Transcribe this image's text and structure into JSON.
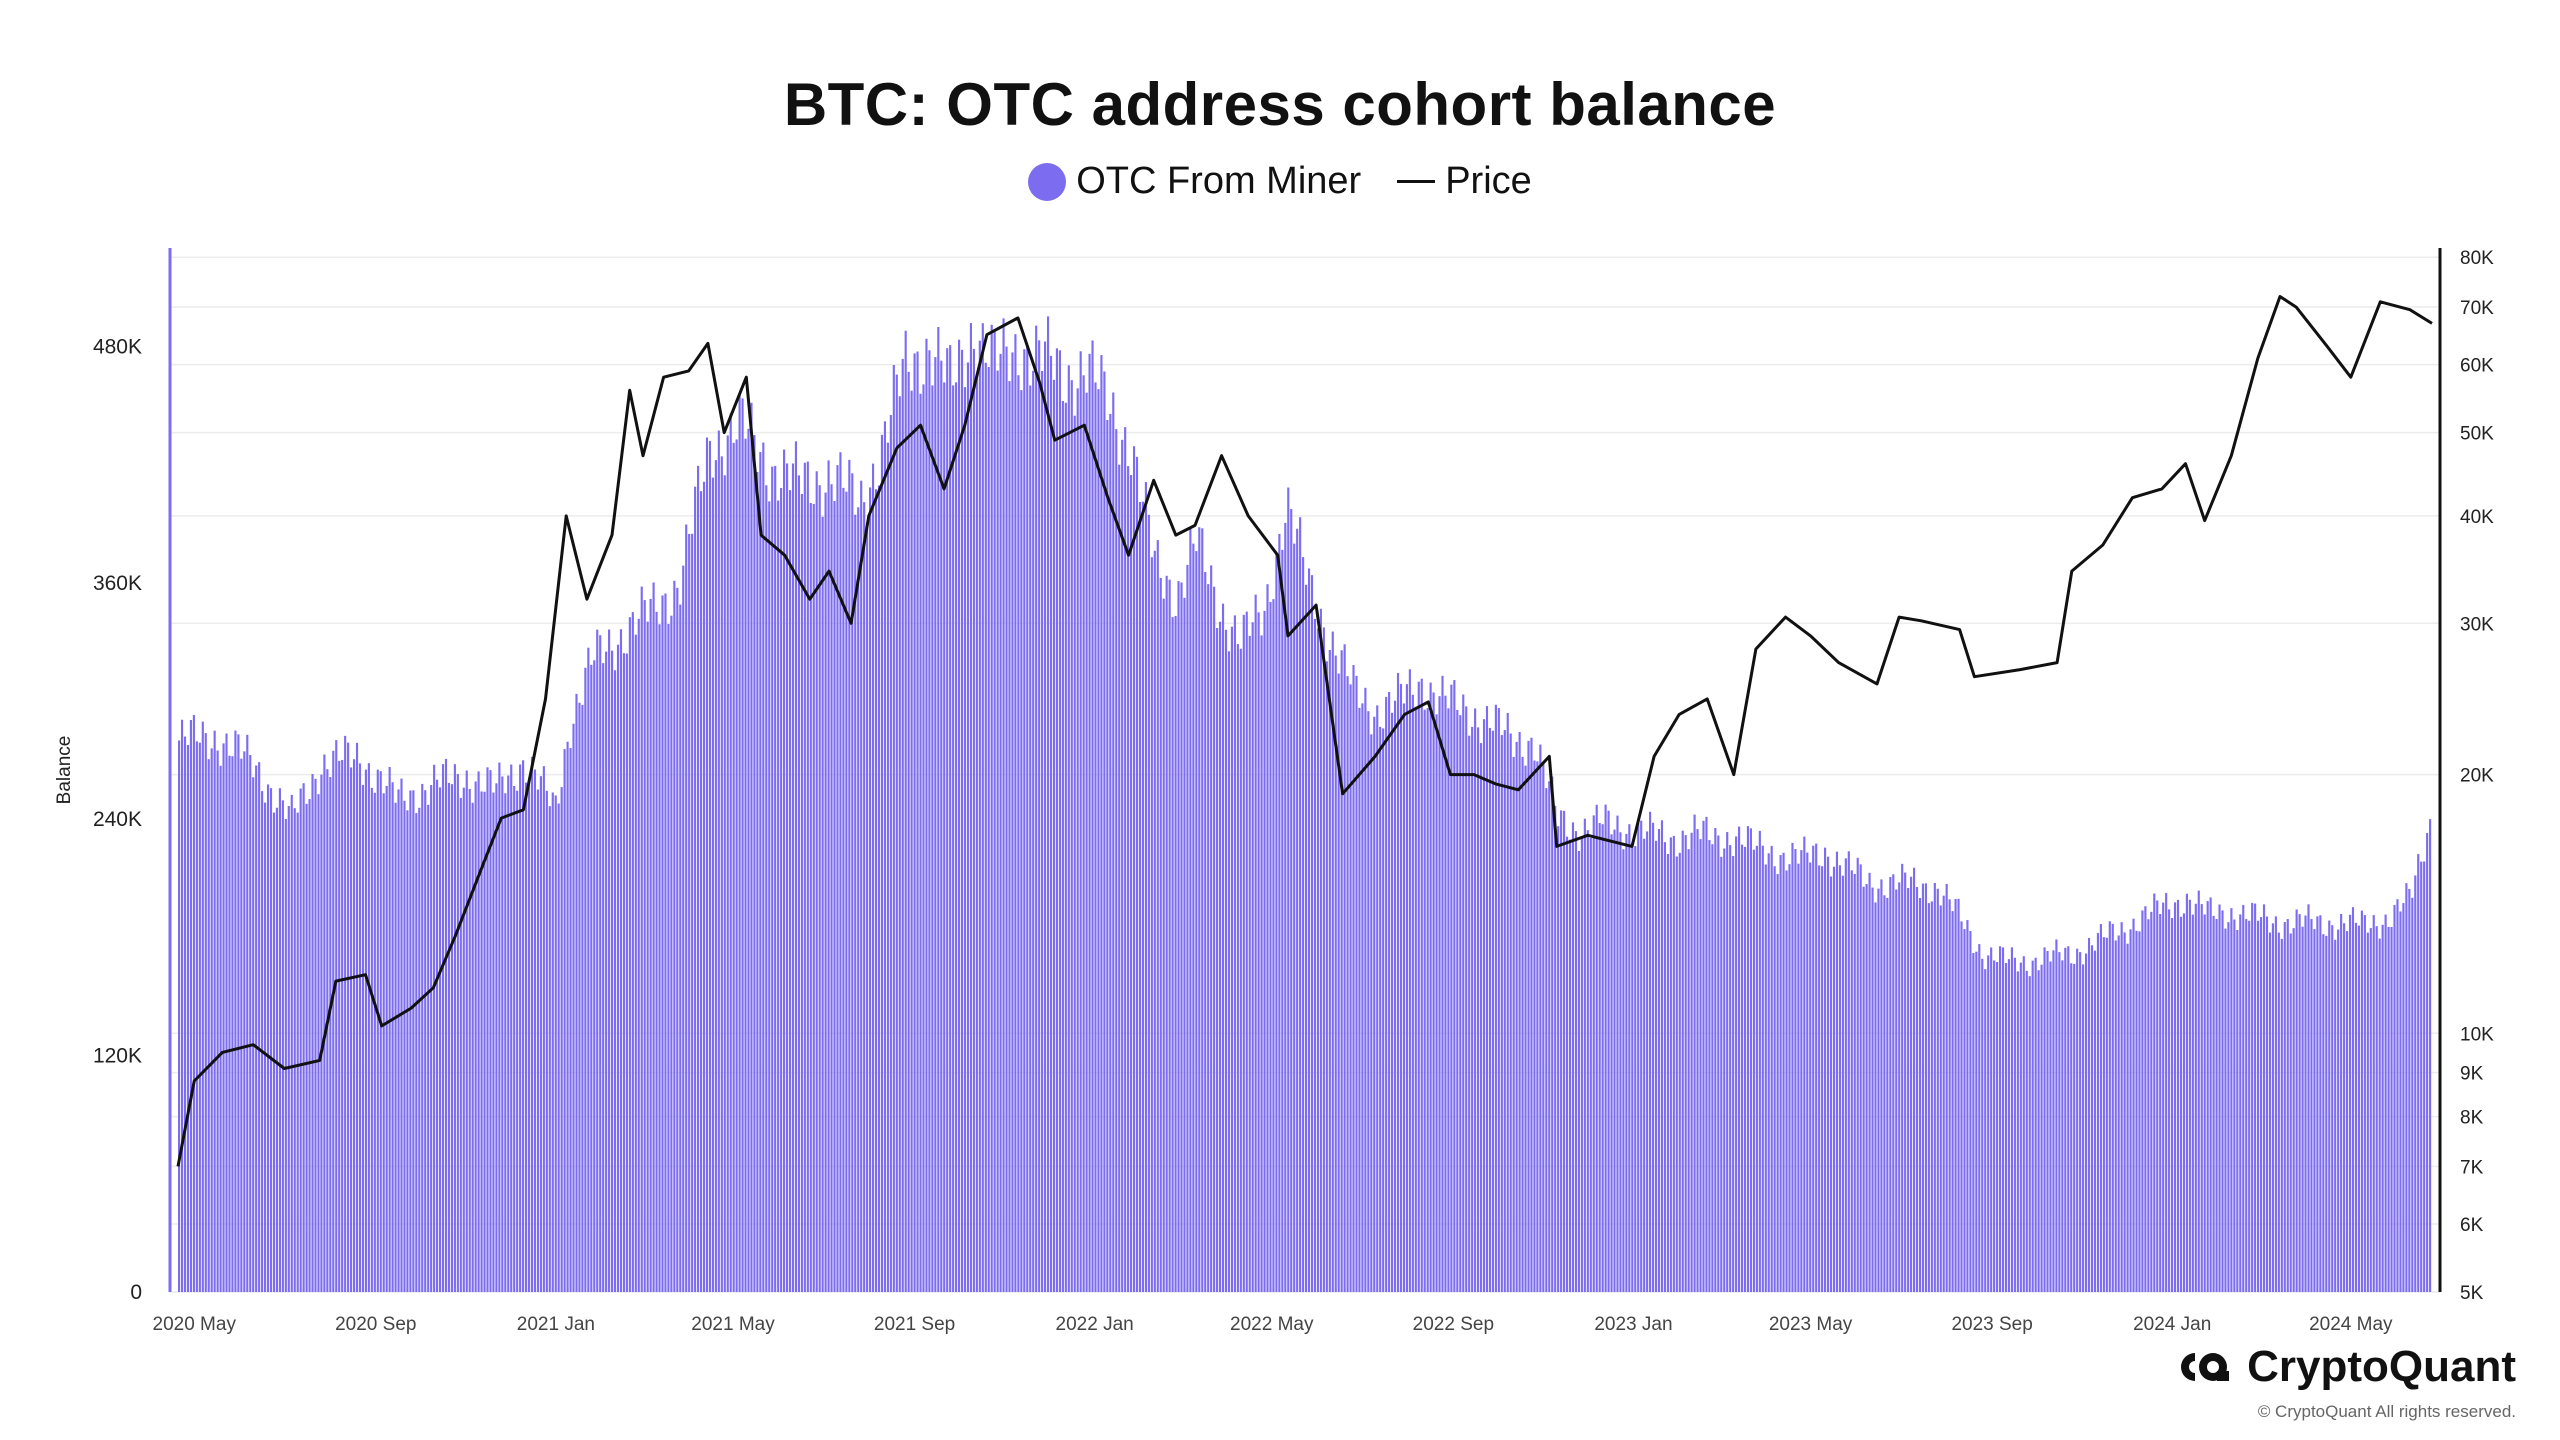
{
  "chart_data": {
    "type": "bar+line",
    "title": "BTC: OTC address cohort balance",
    "ylabel": "Balance",
    "y_left_ticks": [
      "0",
      "120K",
      "240K",
      "360K",
      "480K"
    ],
    "ylim_left": [
      0,
      530000
    ],
    "y_right_ticks": [
      "5K",
      "6K",
      "7K",
      "8K",
      "9K",
      "10K",
      "20K",
      "30K",
      "40K",
      "50K",
      "60K",
      "70K",
      "80K"
    ],
    "ylim_right": [
      5000,
      82000
    ],
    "y_right_scale": "log",
    "x_ticks": [
      "2020 May",
      "2020 Sep",
      "2021 Jan",
      "2021 May",
      "2021 Sep",
      "2022 Jan",
      "2022 May",
      "2022 Sep",
      "2023 Jan",
      "2023 May",
      "2023 Sep",
      "2024 Jan",
      "2024 May"
    ],
    "x_range": [
      "2020-04-20",
      "2024-06-25"
    ],
    "grid": true,
    "legend_position": "top-center",
    "series": [
      {
        "name": "OTC From Miner",
        "type": "bar",
        "color": "#7b6cf0",
        "points": [
          [
            "2020-04-20",
            280000
          ],
          [
            "2020-05-15",
            282000
          ],
          [
            "2020-06-10",
            268000
          ],
          [
            "2020-07-05",
            240000
          ],
          [
            "2020-07-25",
            268000
          ],
          [
            "2020-08-20",
            272000
          ],
          [
            "2020-09-15",
            250000
          ],
          [
            "2020-10-10",
            258000
          ],
          [
            "2020-11-01",
            262000
          ],
          [
            "2020-11-20",
            255000
          ],
          [
            "2020-12-10",
            270000
          ],
          [
            "2020-12-31",
            245000
          ],
          [
            "2021-01-10",
            290000
          ],
          [
            "2021-01-25",
            320000
          ],
          [
            "2021-02-15",
            335000
          ],
          [
            "2021-03-05",
            345000
          ],
          [
            "2021-03-25",
            360000
          ],
          [
            "2021-04-15",
            430000
          ],
          [
            "2021-05-05",
            440000
          ],
          [
            "2021-05-25",
            420000
          ],
          [
            "2021-06-15",
            410000
          ],
          [
            "2021-07-05",
            415000
          ],
          [
            "2021-07-25",
            400000
          ],
          [
            "2021-08-10",
            430000
          ],
          [
            "2021-08-25",
            470000
          ],
          [
            "2021-09-10",
            480000
          ],
          [
            "2021-09-25",
            460000
          ],
          [
            "2021-10-10",
            490000
          ],
          [
            "2021-10-25",
            470000
          ],
          [
            "2021-11-10",
            480000
          ],
          [
            "2021-11-25",
            475000
          ],
          [
            "2021-12-10",
            465000
          ],
          [
            "2021-12-25",
            470000
          ],
          [
            "2022-01-10",
            450000
          ],
          [
            "2022-01-25",
            430000
          ],
          [
            "2022-02-10",
            370000
          ],
          [
            "2022-02-25",
            355000
          ],
          [
            "2022-03-10",
            380000
          ],
          [
            "2022-03-25",
            350000
          ],
          [
            "2022-04-10",
            330000
          ],
          [
            "2022-04-25",
            345000
          ],
          [
            "2022-05-10",
            400000
          ],
          [
            "2022-05-25",
            360000
          ],
          [
            "2022-06-10",
            330000
          ],
          [
            "2022-06-25",
            305000
          ],
          [
            "2022-07-10",
            295000
          ],
          [
            "2022-07-25",
            300000
          ],
          [
            "2022-08-10",
            310000
          ],
          [
            "2022-08-25",
            300000
          ],
          [
            "2022-09-10",
            295000
          ],
          [
            "2022-09-25",
            290000
          ],
          [
            "2022-10-10",
            280000
          ],
          [
            "2022-10-25",
            280000
          ],
          [
            "2022-11-10",
            240000
          ],
          [
            "2022-11-25",
            235000
          ],
          [
            "2022-12-10",
            238000
          ],
          [
            "2022-12-25",
            236000
          ],
          [
            "2023-01-10",
            233000
          ],
          [
            "2023-01-25",
            230000
          ],
          [
            "2023-02-10",
            233000
          ],
          [
            "2023-02-25",
            230000
          ],
          [
            "2023-03-10",
            232000
          ],
          [
            "2023-03-25",
            225000
          ],
          [
            "2023-04-10",
            222000
          ],
          [
            "2023-04-25",
            220000
          ],
          [
            "2023-05-10",
            224000
          ],
          [
            "2023-05-25",
            215000
          ],
          [
            "2023-06-10",
            208000
          ],
          [
            "2023-06-25",
            207000
          ],
          [
            "2023-07-10",
            208000
          ],
          [
            "2023-07-25",
            205000
          ],
          [
            "2023-08-10",
            190000
          ],
          [
            "2023-08-25",
            172000
          ],
          [
            "2023-09-10",
            168000
          ],
          [
            "2023-09-25",
            168000
          ],
          [
            "2023-10-10",
            170000
          ],
          [
            "2023-10-25",
            172000
          ],
          [
            "2023-11-10",
            178000
          ],
          [
            "2023-11-25",
            183000
          ],
          [
            "2023-12-10",
            190000
          ],
          [
            "2023-12-25",
            195000
          ],
          [
            "2024-01-10",
            200000
          ],
          [
            "2024-01-25",
            192000
          ],
          [
            "2024-02-10",
            193000
          ],
          [
            "2024-02-25",
            190000
          ],
          [
            "2024-03-10",
            188000
          ],
          [
            "2024-03-25",
            188000
          ],
          [
            "2024-04-10",
            187000
          ],
          [
            "2024-04-25",
            188000
          ],
          [
            "2024-05-10",
            186000
          ],
          [
            "2024-05-25",
            190000
          ],
          [
            "2024-06-10",
            200000
          ],
          [
            "2024-06-25",
            245000
          ]
        ]
      },
      {
        "name": "Price",
        "type": "line",
        "color": "#111111",
        "points": [
          [
            "2020-04-20",
            7000
          ],
          [
            "2020-05-01",
            8800
          ],
          [
            "2020-05-20",
            9500
          ],
          [
            "2020-06-10",
            9700
          ],
          [
            "2020-07-01",
            9100
          ],
          [
            "2020-07-25",
            9300
          ],
          [
            "2020-08-05",
            11500
          ],
          [
            "2020-08-25",
            11700
          ],
          [
            "2020-09-05",
            10200
          ],
          [
            "2020-09-25",
            10700
          ],
          [
            "2020-10-10",
            11300
          ],
          [
            "2020-10-25",
            13000
          ],
          [
            "2020-11-10",
            15300
          ],
          [
            "2020-11-25",
            17800
          ],
          [
            "2020-12-10",
            18200
          ],
          [
            "2020-12-25",
            24500
          ],
          [
            "2021-01-08",
            40000
          ],
          [
            "2021-01-22",
            32000
          ],
          [
            "2021-02-08",
            38000
          ],
          [
            "2021-02-20",
            56000
          ],
          [
            "2021-03-01",
            47000
          ],
          [
            "2021-03-15",
            58000
          ],
          [
            "2021-04-01",
            59000
          ],
          [
            "2021-04-14",
            63500
          ],
          [
            "2021-04-25",
            50000
          ],
          [
            "2021-05-10",
            58000
          ],
          [
            "2021-05-20",
            38000
          ],
          [
            "2021-06-05",
            36000
          ],
          [
            "2021-06-22",
            32000
          ],
          [
            "2021-07-05",
            34500
          ],
          [
            "2021-07-20",
            30000
          ],
          [
            "2021-08-01",
            40000
          ],
          [
            "2021-08-20",
            48000
          ],
          [
            "2021-09-05",
            51000
          ],
          [
            "2021-09-21",
            43000
          ],
          [
            "2021-10-05",
            51000
          ],
          [
            "2021-10-20",
            65000
          ],
          [
            "2021-11-10",
            68000
          ],
          [
            "2021-11-25",
            57000
          ],
          [
            "2021-12-05",
            49000
          ],
          [
            "2021-12-25",
            51000
          ],
          [
            "2022-01-10",
            42000
          ],
          [
            "2022-01-24",
            36000
          ],
          [
            "2022-02-10",
            44000
          ],
          [
            "2022-02-25",
            38000
          ],
          [
            "2022-03-10",
            39000
          ],
          [
            "2022-03-28",
            47000
          ],
          [
            "2022-04-15",
            40000
          ],
          [
            "2022-05-05",
            36000
          ],
          [
            "2022-05-12",
            29000
          ],
          [
            "2022-05-31",
            31500
          ],
          [
            "2022-06-18",
            19000
          ],
          [
            "2022-07-10",
            21000
          ],
          [
            "2022-07-30",
            23500
          ],
          [
            "2022-08-15",
            24300
          ],
          [
            "2022-08-30",
            20000
          ],
          [
            "2022-09-15",
            20000
          ],
          [
            "2022-09-30",
            19500
          ],
          [
            "2022-10-15",
            19200
          ],
          [
            "2022-11-05",
            21000
          ],
          [
            "2022-11-10",
            16500
          ],
          [
            "2022-12-01",
            17000
          ],
          [
            "2022-12-31",
            16500
          ],
          [
            "2023-01-15",
            21000
          ],
          [
            "2023-02-01",
            23500
          ],
          [
            "2023-02-20",
            24500
          ],
          [
            "2023-03-10",
            20000
          ],
          [
            "2023-03-25",
            28000
          ],
          [
            "2023-04-14",
            30500
          ],
          [
            "2023-05-01",
            29000
          ],
          [
            "2023-05-20",
            27000
          ],
          [
            "2023-06-15",
            25500
          ],
          [
            "2023-06-30",
            30500
          ],
          [
            "2023-07-15",
            30200
          ],
          [
            "2023-08-10",
            29500
          ],
          [
            "2023-08-20",
            26000
          ],
          [
            "2023-09-20",
            26500
          ],
          [
            "2023-10-15",
            27000
          ],
          [
            "2023-10-25",
            34500
          ],
          [
            "2023-11-15",
            37000
          ],
          [
            "2023-12-05",
            42000
          ],
          [
            "2023-12-25",
            43000
          ],
          [
            "2024-01-10",
            46000
          ],
          [
            "2024-01-23",
            39500
          ],
          [
            "2024-02-10",
            47000
          ],
          [
            "2024-02-28",
            61000
          ],
          [
            "2024-03-14",
            72000
          ],
          [
            "2024-03-25",
            70000
          ],
          [
            "2024-04-15",
            63000
          ],
          [
            "2024-05-01",
            58000
          ],
          [
            "2024-05-21",
            71000
          ],
          [
            "2024-06-10",
            69500
          ],
          [
            "2024-06-25",
            67000
          ]
        ]
      }
    ]
  },
  "legend": {
    "bar_label": "OTC From Miner",
    "line_label": "Price"
  },
  "brand": {
    "name": "CryptoQuant",
    "copyright": "© CryptoQuant All rights reserved."
  }
}
